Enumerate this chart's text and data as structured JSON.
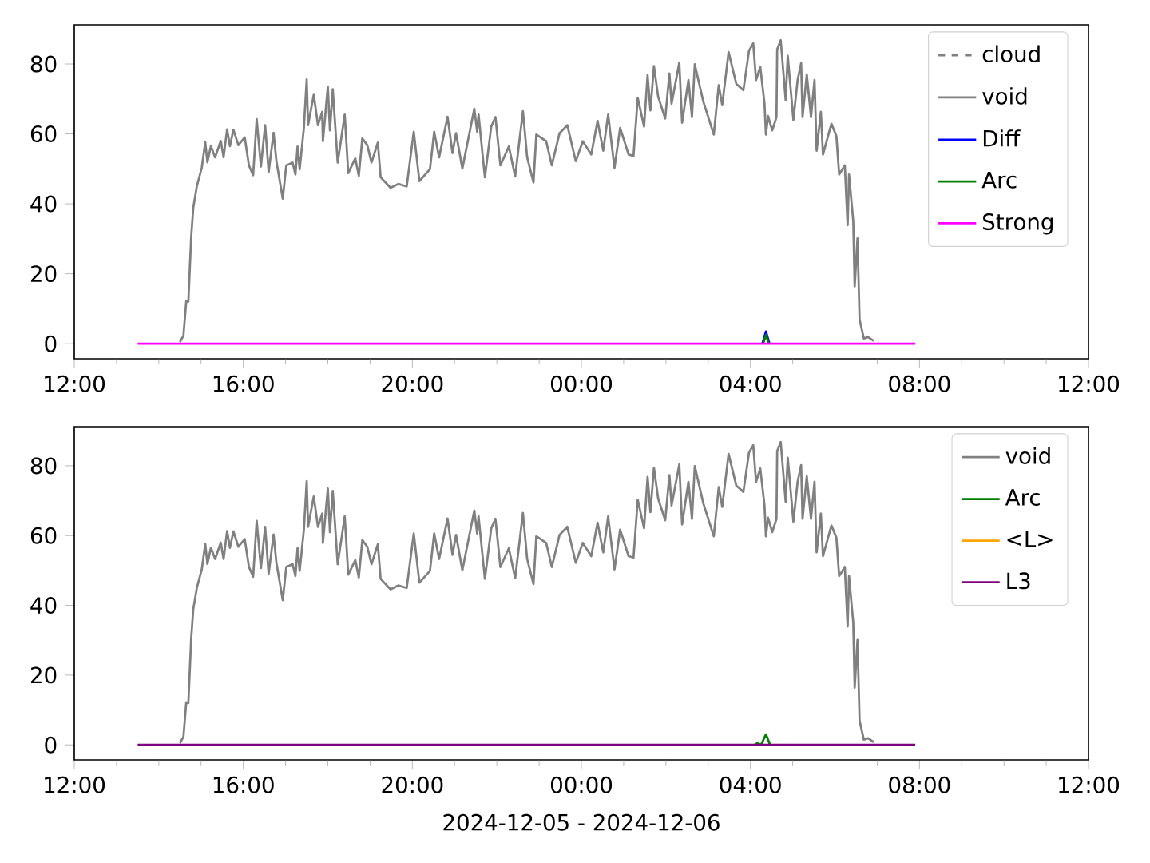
{
  "chart_data": [
    {
      "type": "line",
      "xlim": [
        "2024-12-05T12:00",
        "2024-12-06T12:00"
      ],
      "ylim": [
        -4.3,
        91.2
      ],
      "yticks": [
        0,
        20,
        40,
        60,
        80
      ],
      "xticks": [
        {
          "value": "2024-12-05T12:00",
          "label": "12:00"
        },
        {
          "value": "2024-12-05T13:00",
          "label": null
        },
        {
          "value": "2024-12-05T14:00",
          "label": null
        },
        {
          "value": "2024-12-05T15:00",
          "label": null
        },
        {
          "value": "2024-12-05T16:00",
          "label": "16:00"
        },
        {
          "value": "2024-12-05T17:00",
          "label": null
        },
        {
          "value": "2024-12-05T18:00",
          "label": null
        },
        {
          "value": "2024-12-05T19:00",
          "label": null
        },
        {
          "value": "2024-12-05T20:00",
          "label": "20:00"
        },
        {
          "value": "2024-12-05T21:00",
          "label": null
        },
        {
          "value": "2024-12-05T22:00",
          "label": null
        },
        {
          "value": "2024-12-05T23:00",
          "label": null
        },
        {
          "value": "2024-12-06T00:00",
          "label": "00:00"
        },
        {
          "value": "2024-12-06T01:00",
          "label": null
        },
        {
          "value": "2024-12-06T02:00",
          "label": null
        },
        {
          "value": "2024-12-06T03:00",
          "label": null
        },
        {
          "value": "2024-12-06T04:00",
          "label": "04:00"
        },
        {
          "value": "2024-12-06T05:00",
          "label": null
        },
        {
          "value": "2024-12-06T06:00",
          "label": null
        },
        {
          "value": "2024-12-06T07:00",
          "label": null
        },
        {
          "value": "2024-12-06T08:00",
          "label": "08:00"
        },
        {
          "value": "2024-12-06T09:00",
          "label": null
        },
        {
          "value": "2024-12-06T10:00",
          "label": null
        },
        {
          "value": "2024-12-06T11:00",
          "label": null
        },
        {
          "value": "2024-12-06T12:00",
          "label": "12:00"
        }
      ],
      "legend": "top right",
      "series": [
        {
          "name": "cloud",
          "color": "#808080",
          "line_style": "dashed"
        },
        {
          "name": "void",
          "color": "#808080",
          "x": [
            "2024-12-05T14:30",
            "2024-12-05T14:35",
            "2024-12-05T14:39",
            "2024-12-05T14:42",
            "2024-12-05T14:46",
            "2024-12-05T14:49",
            "2024-12-05T14:54",
            "2024-12-05T15:01",
            "2024-12-05T15:06",
            "2024-12-05T15:09",
            "2024-12-05T15:14",
            "2024-12-05T15:20",
            "2024-12-05T15:28",
            "2024-12-05T15:32",
            "2024-12-05T15:37",
            "2024-12-05T15:41",
            "2024-12-05T15:46",
            "2024-12-05T15:53",
            "2024-12-05T16:02",
            "2024-12-05T16:08",
            "2024-12-05T16:14",
            "2024-12-05T16:19",
            "2024-12-05T16:25",
            "2024-12-05T16:31",
            "2024-12-05T16:36",
            "2024-12-05T16:43",
            "2024-12-05T16:47",
            "2024-12-05T16:56",
            "2024-12-05T17:01",
            "2024-12-05T17:10",
            "2024-12-05T17:14",
            "2024-12-05T17:17",
            "2024-12-05T17:20",
            "2024-12-05T17:26",
            "2024-12-05T17:30",
            "2024-12-05T17:32",
            "2024-12-05T17:40",
            "2024-12-05T17:46",
            "2024-12-05T17:52",
            "2024-12-05T17:53",
            "2024-12-05T18:00",
            "2024-12-05T18:03",
            "2024-12-05T18:07",
            "2024-12-05T18:14",
            "2024-12-05T18:24",
            "2024-12-05T18:29",
            "2024-12-05T18:39",
            "2024-12-05T18:44",
            "2024-12-05T18:49",
            "2024-12-05T18:56",
            "2024-12-05T19:02",
            "2024-12-05T19:11",
            "2024-12-05T19:15",
            "2024-12-05T19:29",
            "2024-12-05T19:40",
            "2024-12-05T19:52",
            "2024-12-05T20:02",
            "2024-12-05T20:10",
            "2024-12-05T20:25",
            "2024-12-05T20:31",
            "2024-12-05T20:38",
            "2024-12-05T20:50",
            "2024-12-05T20:57",
            "2024-12-05T21:02",
            "2024-12-05T21:11",
            "2024-12-05T21:28",
            "2024-12-05T21:32",
            "2024-12-05T21:34",
            "2024-12-05T21:43",
            "2024-12-05T21:52",
            "2024-12-05T21:58",
            "2024-12-05T22:05",
            "2024-12-05T22:17",
            "2024-12-05T22:26",
            "2024-12-05T22:37",
            "2024-12-05T22:43",
            "2024-12-05T22:52",
            "2024-12-05T22:56",
            "2024-12-05T23:10",
            "2024-12-05T23:18",
            "2024-12-05T23:29",
            "2024-12-05T23:40",
            "2024-12-05T23:52",
            "2024-12-06T00:02",
            "2024-12-06T00:14",
            "2024-12-06T00:23",
            "2024-12-06T00:31",
            "2024-12-06T00:38",
            "2024-12-06T00:47",
            "2024-12-06T00:55",
            "2024-12-06T01:07",
            "2024-12-06T01:14",
            "2024-12-06T01:20",
            "2024-12-06T01:29",
            "2024-12-06T01:34",
            "2024-12-06T01:38",
            "2024-12-06T01:43",
            "2024-12-06T01:49",
            "2024-12-06T01:59",
            "2024-12-06T02:05",
            "2024-12-06T02:08",
            "2024-12-06T02:19",
            "2024-12-06T02:23",
            "2024-12-06T02:32",
            "2024-12-06T02:37",
            "2024-12-06T02:41",
            "2024-12-06T02:53",
            "2024-12-06T03:08",
            "2024-12-06T03:15",
            "2024-12-06T03:20",
            "2024-12-06T03:29",
            "2024-12-06T03:40",
            "2024-12-06T03:50",
            "2024-12-06T03:58",
            "2024-12-06T04:04",
            "2024-12-06T04:08",
            "2024-12-06T04:14",
            "2024-12-06T04:20",
            "2024-12-06T04:22",
            "2024-12-06T04:25",
            "2024-12-06T04:31",
            "2024-12-06T04:37",
            "2024-12-06T04:38",
            "2024-12-06T04:43",
            "2024-12-06T04:50",
            "2024-12-06T04:53",
            "2024-12-06T05:01",
            "2024-12-06T05:07",
            "2024-12-06T05:12",
            "2024-12-06T05:14",
            "2024-12-06T05:20",
            "2024-12-06T05:26",
            "2024-12-06T05:31",
            "2024-12-06T05:34",
            "2024-12-06T05:40",
            "2024-12-06T05:43",
            "2024-12-06T05:55",
            "2024-12-06T06:02",
            "2024-12-06T06:06",
            "2024-12-06T06:14",
            "2024-12-06T06:18",
            "2024-12-06T06:20",
            "2024-12-06T06:26",
            "2024-12-06T06:28",
            "2024-12-06T06:32",
            "2024-12-06T06:35",
            "2024-12-06T06:41",
            "2024-12-06T06:47",
            "2024-12-06T06:55"
          ],
          "values": [
            0.5,
            2.3,
            12.2,
            12,
            30.5,
            38.9,
            45,
            50.3,
            57.6,
            51.9,
            56.5,
            53.3,
            58,
            53.3,
            61.3,
            56.5,
            61.2,
            56.8,
            59,
            51,
            48.2,
            64.2,
            50.7,
            62.5,
            49.1,
            60.3,
            52.2,
            41.5,
            51,
            51.8,
            48.4,
            56.4,
            49.9,
            61.7,
            75.6,
            62.5,
            71.2,
            62.5,
            66.3,
            57.9,
            73.5,
            61,
            72.8,
            51.8,
            65.5,
            48.8,
            53,
            48,
            58.7,
            56.8,
            51.8,
            57.5,
            47.6,
            44.6,
            45.7,
            45,
            60.6,
            46.5,
            49.9,
            60.6,
            53.3,
            64.9,
            54.5,
            60.2,
            50.1,
            67.2,
            60.6,
            65.5,
            47.6,
            62.1,
            64.8,
            51,
            56.4,
            47.8,
            66.5,
            53.3,
            46.1,
            59.8,
            57.9,
            51,
            60.2,
            62.5,
            52.2,
            57.9,
            54.1,
            63.7,
            55.2,
            65.5,
            50.3,
            61.7,
            54.1,
            53.7,
            70.3,
            62.1,
            76.8,
            66.7,
            79.4,
            70.6,
            64.4,
            77.3,
            68.6,
            80.4,
            63.2,
            75.4,
            64.8,
            79.9,
            69.3,
            59.8,
            73.9,
            68.2,
            83.4,
            74.3,
            72.5,
            83.8,
            85.9,
            75.4,
            79.2,
            68.6,
            59.8,
            65.1,
            61,
            64.8,
            84.2,
            86.8,
            69.7,
            82.3,
            64,
            75.4,
            80.2,
            64.8,
            77,
            64.8,
            75.4,
            55.2,
            66.3,
            54.1,
            62.9,
            59.4,
            48.4,
            51,
            33.9,
            48.4,
            35,
            16.4,
            30.1,
            6.9,
            1.5,
            1.9,
            0.8
          ]
        },
        {
          "name": "Diff",
          "color": "#0000ff",
          "x": [
            "2024-12-06T04:17",
            "2024-12-06T04:22",
            "2024-12-06T04:27"
          ],
          "values": [
            0,
            3.5,
            0
          ]
        },
        {
          "name": "Arc",
          "color": "#008000",
          "x": [
            "2024-12-06T04:18",
            "2024-12-06T04:22",
            "2024-12-06T04:26"
          ],
          "values": [
            0,
            2.5,
            0
          ]
        },
        {
          "name": "Strong",
          "color": "#ff00ff",
          "x": [
            "2024-12-05T13:30",
            "2024-12-06T07:54"
          ],
          "values": [
            0,
            0
          ]
        }
      ]
    },
    {
      "type": "line",
      "xlim": [
        "2024-12-05T12:00",
        "2024-12-06T12:00"
      ],
      "ylim": [
        -4.3,
        91.2
      ],
      "yticks": [
        0,
        20,
        40,
        60,
        80
      ],
      "xticks": [
        {
          "value": "2024-12-05T12:00",
          "label": "12:00"
        },
        {
          "value": "2024-12-05T13:00",
          "label": null
        },
        {
          "value": "2024-12-05T14:00",
          "label": null
        },
        {
          "value": "2024-12-05T15:00",
          "label": null
        },
        {
          "value": "2024-12-05T16:00",
          "label": "16:00"
        },
        {
          "value": "2024-12-05T17:00",
          "label": null
        },
        {
          "value": "2024-12-05T18:00",
          "label": null
        },
        {
          "value": "2024-12-05T19:00",
          "label": null
        },
        {
          "value": "2024-12-05T20:00",
          "label": "20:00"
        },
        {
          "value": "2024-12-05T21:00",
          "label": null
        },
        {
          "value": "2024-12-05T22:00",
          "label": null
        },
        {
          "value": "2024-12-05T23:00",
          "label": null
        },
        {
          "value": "2024-12-06T00:00",
          "label": "00:00"
        },
        {
          "value": "2024-12-06T01:00",
          "label": null
        },
        {
          "value": "2024-12-06T02:00",
          "label": null
        },
        {
          "value": "2024-12-06T03:00",
          "label": null
        },
        {
          "value": "2024-12-06T04:00",
          "label": "04:00"
        },
        {
          "value": "2024-12-06T05:00",
          "label": null
        },
        {
          "value": "2024-12-06T06:00",
          "label": null
        },
        {
          "value": "2024-12-06T07:00",
          "label": null
        },
        {
          "value": "2024-12-06T08:00",
          "label": "08:00"
        },
        {
          "value": "2024-12-06T09:00",
          "label": null
        },
        {
          "value": "2024-12-06T10:00",
          "label": null
        },
        {
          "value": "2024-12-06T11:00",
          "label": null
        },
        {
          "value": "2024-12-06T12:00",
          "label": "12:00"
        }
      ],
      "xlabel": "2024-12-05 - 2024-12-06",
      "legend": "top right",
      "series": [
        {
          "name": "void",
          "color": "#808080",
          "x": [
            "2024-12-05T14:30",
            "2024-12-05T14:35",
            "2024-12-05T14:39",
            "2024-12-05T14:42",
            "2024-12-05T14:46",
            "2024-12-05T14:49",
            "2024-12-05T14:54",
            "2024-12-05T15:01",
            "2024-12-05T15:06",
            "2024-12-05T15:09",
            "2024-12-05T15:14",
            "2024-12-05T15:20",
            "2024-12-05T15:28",
            "2024-12-05T15:32",
            "2024-12-05T15:37",
            "2024-12-05T15:41",
            "2024-12-05T15:46",
            "2024-12-05T15:53",
            "2024-12-05T16:02",
            "2024-12-05T16:08",
            "2024-12-05T16:14",
            "2024-12-05T16:19",
            "2024-12-05T16:25",
            "2024-12-05T16:31",
            "2024-12-05T16:36",
            "2024-12-05T16:43",
            "2024-12-05T16:47",
            "2024-12-05T16:56",
            "2024-12-05T17:01",
            "2024-12-05T17:10",
            "2024-12-05T17:14",
            "2024-12-05T17:17",
            "2024-12-05T17:20",
            "2024-12-05T17:26",
            "2024-12-05T17:30",
            "2024-12-05T17:32",
            "2024-12-05T17:40",
            "2024-12-05T17:46",
            "2024-12-05T17:52",
            "2024-12-05T17:53",
            "2024-12-05T18:00",
            "2024-12-05T18:03",
            "2024-12-05T18:07",
            "2024-12-05T18:14",
            "2024-12-05T18:24",
            "2024-12-05T18:29",
            "2024-12-05T18:39",
            "2024-12-05T18:44",
            "2024-12-05T18:49",
            "2024-12-05T18:56",
            "2024-12-05T19:02",
            "2024-12-05T19:11",
            "2024-12-05T19:15",
            "2024-12-05T19:29",
            "2024-12-05T19:40",
            "2024-12-05T19:52",
            "2024-12-05T20:02",
            "2024-12-05T20:10",
            "2024-12-05T20:25",
            "2024-12-05T20:31",
            "2024-12-05T20:38",
            "2024-12-05T20:50",
            "2024-12-05T20:57",
            "2024-12-05T21:02",
            "2024-12-05T21:11",
            "2024-12-05T21:28",
            "2024-12-05T21:32",
            "2024-12-05T21:34",
            "2024-12-05T21:43",
            "2024-12-05T21:52",
            "2024-12-05T21:58",
            "2024-12-05T22:05",
            "2024-12-05T22:17",
            "2024-12-05T22:26",
            "2024-12-05T22:37",
            "2024-12-05T22:43",
            "2024-12-05T22:52",
            "2024-12-05T22:56",
            "2024-12-05T23:10",
            "2024-12-05T23:18",
            "2024-12-05T23:29",
            "2024-12-05T23:40",
            "2024-12-05T23:52",
            "2024-12-06T00:02",
            "2024-12-06T00:14",
            "2024-12-06T00:23",
            "2024-12-06T00:31",
            "2024-12-06T00:38",
            "2024-12-06T00:47",
            "2024-12-06T00:55",
            "2024-12-06T01:07",
            "2024-12-06T01:14",
            "2024-12-06T01:20",
            "2024-12-06T01:29",
            "2024-12-06T01:34",
            "2024-12-06T01:38",
            "2024-12-06T01:43",
            "2024-12-06T01:49",
            "2024-12-06T01:59",
            "2024-12-06T02:05",
            "2024-12-06T02:08",
            "2024-12-06T02:19",
            "2024-12-06T02:23",
            "2024-12-06T02:32",
            "2024-12-06T02:37",
            "2024-12-06T02:41",
            "2024-12-06T02:53",
            "2024-12-06T03:08",
            "2024-12-06T03:15",
            "2024-12-06T03:20",
            "2024-12-06T03:29",
            "2024-12-06T03:40",
            "2024-12-06T03:50",
            "2024-12-06T03:58",
            "2024-12-06T04:04",
            "2024-12-06T04:08",
            "2024-12-06T04:14",
            "2024-12-06T04:20",
            "2024-12-06T04:22",
            "2024-12-06T04:25",
            "2024-12-06T04:31",
            "2024-12-06T04:37",
            "2024-12-06T04:38",
            "2024-12-06T04:43",
            "2024-12-06T04:50",
            "2024-12-06T04:53",
            "2024-12-06T05:01",
            "2024-12-06T05:07",
            "2024-12-06T05:12",
            "2024-12-06T05:14",
            "2024-12-06T05:20",
            "2024-12-06T05:26",
            "2024-12-06T05:31",
            "2024-12-06T05:34",
            "2024-12-06T05:40",
            "2024-12-06T05:43",
            "2024-12-06T05:55",
            "2024-12-06T06:02",
            "2024-12-06T06:06",
            "2024-12-06T06:14",
            "2024-12-06T06:18",
            "2024-12-06T06:20",
            "2024-12-06T06:26",
            "2024-12-06T06:28",
            "2024-12-06T06:32",
            "2024-12-06T06:35",
            "2024-12-06T06:41",
            "2024-12-06T06:47",
            "2024-12-06T06:55"
          ],
          "values": [
            0.5,
            2.3,
            12.2,
            12,
            30.5,
            38.9,
            45,
            50.3,
            57.6,
            51.9,
            56.5,
            53.3,
            58,
            53.3,
            61.3,
            56.5,
            61.2,
            56.8,
            59,
            51,
            48.2,
            64.2,
            50.7,
            62.5,
            49.1,
            60.3,
            52.2,
            41.5,
            51,
            51.8,
            48.4,
            56.4,
            49.9,
            61.7,
            75.6,
            62.5,
            71.2,
            62.5,
            66.3,
            57.9,
            73.5,
            61,
            72.8,
            51.8,
            65.5,
            48.8,
            53,
            48,
            58.7,
            56.8,
            51.8,
            57.5,
            47.6,
            44.6,
            45.7,
            45,
            60.6,
            46.5,
            49.9,
            60.6,
            53.3,
            64.9,
            54.5,
            60.2,
            50.1,
            67.2,
            60.6,
            65.5,
            47.6,
            62.1,
            64.8,
            51,
            56.4,
            47.8,
            66.5,
            53.3,
            46.1,
            59.8,
            57.9,
            51,
            60.2,
            62.5,
            52.2,
            57.9,
            54.1,
            63.7,
            55.2,
            65.5,
            50.3,
            61.7,
            54.1,
            53.7,
            70.3,
            62.1,
            76.8,
            66.7,
            79.4,
            70.6,
            64.4,
            77.3,
            68.6,
            80.4,
            63.2,
            75.4,
            64.8,
            79.9,
            69.3,
            59.8,
            73.9,
            68.2,
            83.4,
            74.3,
            72.5,
            83.8,
            85.9,
            75.4,
            79.2,
            68.6,
            59.8,
            65.1,
            61,
            64.8,
            84.2,
            86.8,
            69.7,
            82.3,
            64,
            75.4,
            80.2,
            64.8,
            77,
            64.8,
            75.4,
            55.2,
            66.3,
            54.1,
            62.9,
            59.4,
            48.4,
            51,
            33.9,
            48.4,
            35,
            16.4,
            30.1,
            6.9,
            1.5,
            1.9,
            0.8
          ]
        },
        {
          "name": "Arc",
          "color": "#008000",
          "x": [
            "2024-12-06T04:06",
            "2024-12-06T04:10",
            "2024-12-06T04:15",
            "2024-12-06T04:22",
            "2024-12-06T04:28"
          ],
          "values": [
            0,
            0.5,
            0,
            3,
            0
          ]
        },
        {
          "name": "<L>",
          "color": "#ffa500"
        },
        {
          "name": "L3",
          "color": "#800080",
          "x": [
            "2024-12-05T13:30",
            "2024-12-06T07:54"
          ],
          "values": [
            0,
            0
          ]
        }
      ]
    }
  ]
}
